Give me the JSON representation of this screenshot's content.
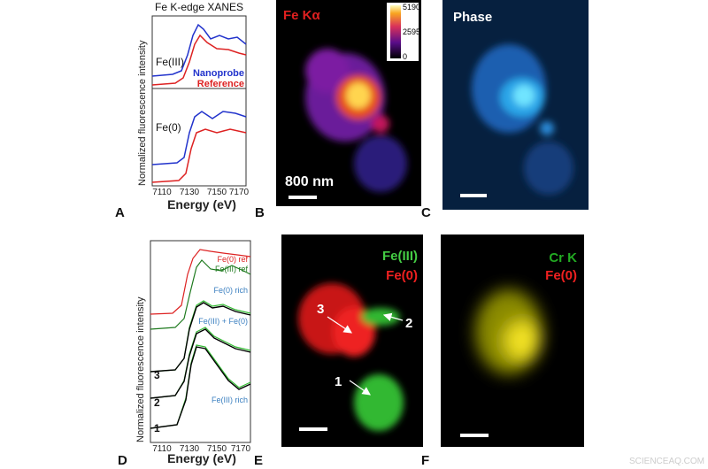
{
  "panels": [
    {
      "label": "A",
      "title": "Fe K-edge XANES",
      "y_axis_label": "Normalized fluorescence intensity",
      "x_axis_label": "Energy (eV)",
      "x_ticks": [
        "7110",
        "7130",
        "7150",
        "7170"
      ],
      "annotations": [
        "Fe(III)",
        "Nanoprobe",
        "Reference",
        "Fe(0)"
      ]
    },
    {
      "label": "B",
      "title": "Fe Kα",
      "colorbar_labels": [
        "5190",
        "2595",
        "0"
      ],
      "scale_label": "800 nm"
    },
    {
      "label": "C",
      "title": "Phase"
    },
    {
      "label": "D",
      "y_axis_label": "Normalized fluorescence intensity",
      "x_axis_label": "Energy (eV)",
      "x_ticks": [
        "7110",
        "7130",
        "7150",
        "7170"
      ],
      "annotations": [
        "Fe(0) ref",
        "Fe(III) ref",
        "Fe(0) rich",
        "Fe(III) + Fe(0)",
        "Fe(III) rich"
      ],
      "curve_numbers": [
        "3",
        "2",
        "1"
      ]
    },
    {
      "label": "E",
      "legend": [
        "Fe(III)",
        "Fe(0)"
      ],
      "region_labels": [
        "3",
        "2",
        "1"
      ]
    },
    {
      "label": "F",
      "legend": [
        "Cr K",
        "Fe(0)"
      ]
    }
  ],
  "watermark": "SCIENCEAQ.COM"
}
